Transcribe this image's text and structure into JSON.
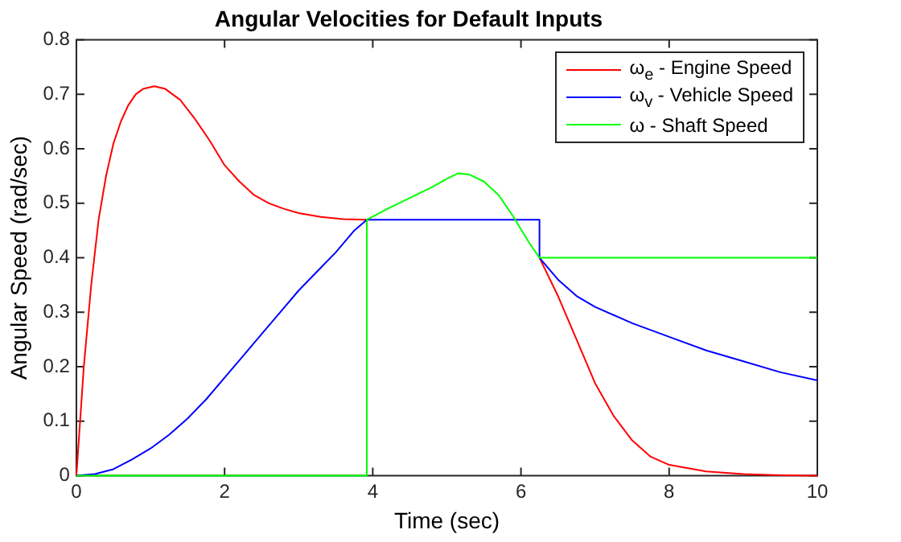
{
  "chart_data": {
    "type": "line",
    "title": "Angular Velocities for Default Inputs",
    "xlabel": "Time (sec)",
    "ylabel": "Angular Speed (rad/sec)",
    "xlim": [
      0,
      10
    ],
    "xticks": [
      0,
      2,
      4,
      6,
      8,
      10
    ],
    "ylim": [
      0,
      0.8
    ],
    "yticks": [
      0,
      0.1,
      0.2,
      0.3,
      0.4,
      0.5,
      0.6,
      0.7,
      0.8
    ],
    "legend": "top right",
    "marker": "none",
    "line_style": "solid",
    "series": [
      {
        "name": "ω$_{e}$ - Engine Speed",
        "color": "#ff0000",
        "x": [
          0,
          0.05,
          0.1,
          0.2,
          0.3,
          0.4,
          0.5,
          0.6,
          0.7,
          0.8,
          0.9,
          1.05,
          1.2,
          1.4,
          1.6,
          1.8,
          2.0,
          2.2,
          2.4,
          2.6,
          2.8,
          3.0,
          3.3,
          3.6,
          3.92,
          4.2,
          4.5,
          4.8,
          5.0,
          5.15,
          5.3,
          5.5,
          5.7,
          5.9,
          6.1,
          6.25,
          6.5,
          6.75,
          7.0,
          7.25,
          7.5,
          7.75,
          8.0,
          8.5,
          9.0,
          9.5,
          10
        ],
        "values": [
          0,
          0.1,
          0.2,
          0.35,
          0.47,
          0.55,
          0.61,
          0.65,
          0.68,
          0.7,
          0.71,
          0.715,
          0.71,
          0.69,
          0.655,
          0.615,
          0.57,
          0.54,
          0.515,
          0.5,
          0.49,
          0.482,
          0.475,
          0.471,
          0.47,
          null,
          null,
          null,
          null,
          null,
          null,
          null,
          null,
          null,
          null,
          0.4,
          0.33,
          0.25,
          0.17,
          0.11,
          0.065,
          0.035,
          0.02,
          0.008,
          0.003,
          0.001,
          0
        ]
      },
      {
        "name": "ω$_{v}$ - Vehicle Speed",
        "color": "#0000ff",
        "x": [
          0,
          0.25,
          0.5,
          0.75,
          1.0,
          1.25,
          1.5,
          1.75,
          2.0,
          2.25,
          2.5,
          2.75,
          3.0,
          3.25,
          3.5,
          3.75,
          3.92,
          6.25,
          6.25,
          6.5,
          6.75,
          7.0,
          7.5,
          8.0,
          8.5,
          9.0,
          9.5,
          10
        ],
        "values": [
          0,
          0.003,
          0.012,
          0.03,
          0.05,
          0.075,
          0.105,
          0.14,
          0.18,
          0.22,
          0.26,
          0.3,
          0.34,
          0.375,
          0.41,
          0.45,
          0.47,
          0.47,
          0.4,
          0.36,
          0.33,
          0.31,
          0.28,
          0.255,
          0.23,
          0.21,
          0.19,
          0.175
        ]
      },
      {
        "name": "ω - Shaft Speed",
        "color": "#00ff00",
        "x": [
          0,
          3.92,
          3.92,
          4.2,
          4.5,
          4.8,
          5.0,
          5.15,
          5.3,
          5.5,
          5.7,
          5.9,
          6.1,
          6.25,
          10
        ],
        "values": [
          0,
          0,
          0.47,
          0.49,
          0.51,
          0.53,
          0.545,
          0.555,
          0.553,
          0.54,
          0.515,
          0.475,
          0.43,
          0.4,
          0.4
        ]
      }
    ]
  }
}
